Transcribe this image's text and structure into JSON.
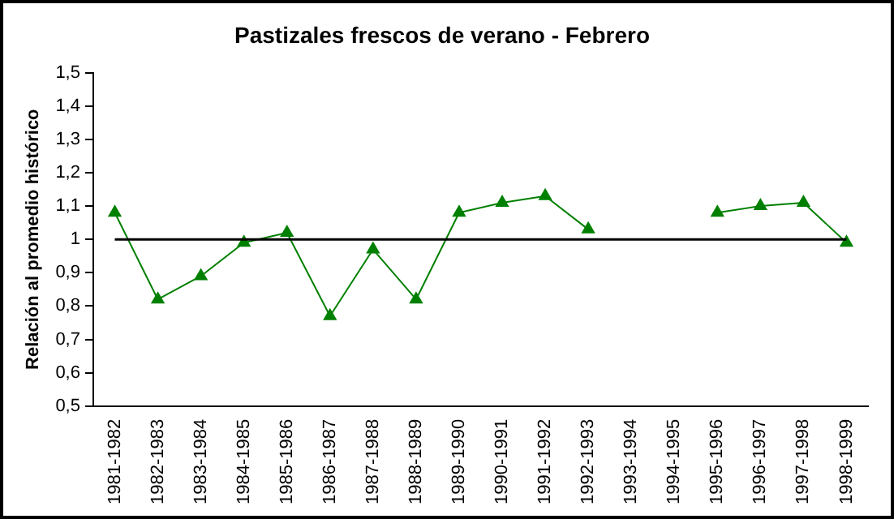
{
  "chart_data": {
    "type": "line",
    "title": "Pastizales frescos de verano - Febrero",
    "ylabel": "Relación al promedio histórico",
    "categories": [
      "1981-1982",
      "1982-1983",
      "1983-1984",
      "1984-1985",
      "1985-1986",
      "1986-1987",
      "1987-1988",
      "1988-1989",
      "1989-1990",
      "1990-1991",
      "1991-1992",
      "1992-1993",
      "1993-1994",
      "1994-1995",
      "1995-1996",
      "1996-1997",
      "1997-1998",
      "1998-1999"
    ],
    "series": [
      {
        "color": "#008000",
        "values": [
          1.08,
          0.82,
          0.89,
          0.99,
          1.02,
          0.77,
          0.97,
          0.82,
          1.08,
          1.11,
          1.13,
          1.03,
          null,
          null,
          1.08,
          1.1,
          1.11,
          0.99
        ]
      }
    ],
    "ylim": [
      0.5,
      1.5
    ],
    "yticks": [
      {
        "value": 0.5,
        "label": "0,5"
      },
      {
        "value": 0.6,
        "label": "0,6"
      },
      {
        "value": 0.7,
        "label": "0,7"
      },
      {
        "value": 0.8,
        "label": "0,8"
      },
      {
        "value": 0.9,
        "label": "0,9"
      },
      {
        "value": 1,
        "label": "1"
      },
      {
        "value": 1.1,
        "label": "1,1"
      },
      {
        "value": 1.2,
        "label": "1,2"
      },
      {
        "value": 1.3,
        "label": "1,3"
      },
      {
        "value": 1.4,
        "label": "1,4"
      },
      {
        "value": 1.5,
        "label": "1,5"
      }
    ],
    "ref_lines": [
      {
        "axis": "y",
        "value": 1,
        "color": "#000000"
      }
    ],
    "grid": false,
    "legend": false,
    "marker": "triangle",
    "line_style": "solid"
  }
}
